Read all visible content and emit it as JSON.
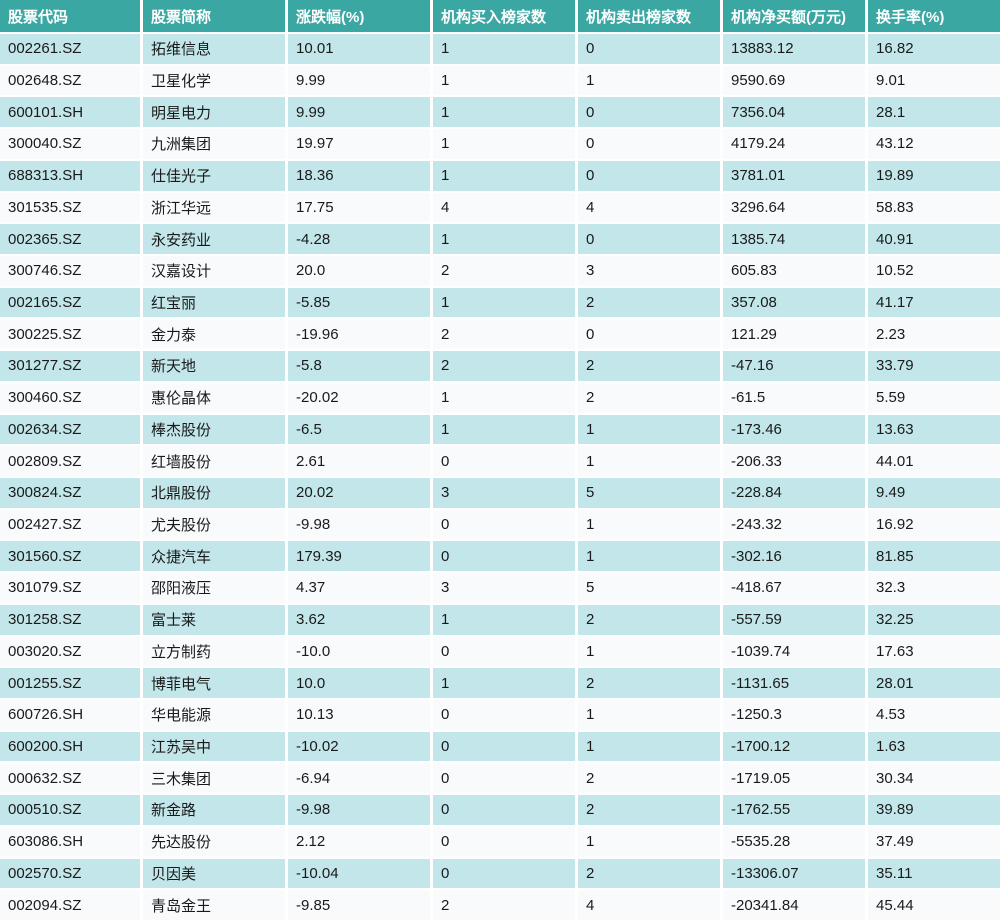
{
  "colors": {
    "header_bg": "#3BA7A3",
    "header_text": "#FFFFFF",
    "row_alt": "#C2E6E9",
    "row_base": "#F8FAFB",
    "cell_text": "#1A1A1A"
  },
  "chart_data": {
    "type": "table",
    "columns": [
      "股票代码",
      "股票简称",
      "涨跌幅(%)",
      "机构买入榜家数",
      "机构卖出榜家数",
      "机构净买额(万元)",
      "换手率(%)"
    ],
    "rows": [
      [
        "002261.SZ",
        "拓维信息",
        "10.01",
        "1",
        "0",
        "13883.12",
        "16.82"
      ],
      [
        "002648.SZ",
        "卫星化学",
        "9.99",
        "1",
        "1",
        "9590.69",
        "9.01"
      ],
      [
        "600101.SH",
        "明星电力",
        "9.99",
        "1",
        "0",
        "7356.04",
        "28.1"
      ],
      [
        "300040.SZ",
        "九洲集团",
        "19.97",
        "1",
        "0",
        "4179.24",
        "43.12"
      ],
      [
        "688313.SH",
        "仕佳光子",
        "18.36",
        "1",
        "0",
        "3781.01",
        "19.89"
      ],
      [
        "301535.SZ",
        "浙江华远",
        "17.75",
        "4",
        "4",
        "3296.64",
        "58.83"
      ],
      [
        "002365.SZ",
        "永安药业",
        "-4.28",
        "1",
        "0",
        "1385.74",
        "40.91"
      ],
      [
        "300746.SZ",
        "汉嘉设计",
        "20.0",
        "2",
        "3",
        "605.83",
        "10.52"
      ],
      [
        "002165.SZ",
        "红宝丽",
        "-5.85",
        "1",
        "2",
        "357.08",
        "41.17"
      ],
      [
        "300225.SZ",
        "金力泰",
        "-19.96",
        "2",
        "0",
        "121.29",
        "2.23"
      ],
      [
        "301277.SZ",
        "新天地",
        "-5.8",
        "2",
        "2",
        "-47.16",
        "33.79"
      ],
      [
        "300460.SZ",
        "惠伦晶体",
        "-20.02",
        "1",
        "2",
        "-61.5",
        "5.59"
      ],
      [
        "002634.SZ",
        "棒杰股份",
        "-6.5",
        "1",
        "1",
        "-173.46",
        "13.63"
      ],
      [
        "002809.SZ",
        "红墙股份",
        "2.61",
        "0",
        "1",
        "-206.33",
        "44.01"
      ],
      [
        "300824.SZ",
        "北鼎股份",
        "20.02",
        "3",
        "5",
        "-228.84",
        "9.49"
      ],
      [
        "002427.SZ",
        "尤夫股份",
        "-9.98",
        "0",
        "1",
        "-243.32",
        "16.92"
      ],
      [
        "301560.SZ",
        "众捷汽车",
        "179.39",
        "0",
        "1",
        "-302.16",
        "81.85"
      ],
      [
        "301079.SZ",
        "邵阳液压",
        "4.37",
        "3",
        "5",
        "-418.67",
        "32.3"
      ],
      [
        "301258.SZ",
        "富士莱",
        "3.62",
        "1",
        "2",
        "-557.59",
        "32.25"
      ],
      [
        "003020.SZ",
        "立方制药",
        "-10.0",
        "0",
        "1",
        "-1039.74",
        "17.63"
      ],
      [
        "001255.SZ",
        "博菲电气",
        "10.0",
        "1",
        "2",
        "-1131.65",
        "28.01"
      ],
      [
        "600726.SH",
        "华电能源",
        "10.13",
        "0",
        "1",
        "-1250.3",
        "4.53"
      ],
      [
        "600200.SH",
        "江苏吴中",
        "-10.02",
        "0",
        "1",
        "-1700.12",
        "1.63"
      ],
      [
        "000632.SZ",
        "三木集团",
        "-6.94",
        "0",
        "2",
        "-1719.05",
        "30.34"
      ],
      [
        "000510.SZ",
        "新金路",
        "-9.98",
        "0",
        "2",
        "-1762.55",
        "39.89"
      ],
      [
        "603086.SH",
        "先达股份",
        "2.12",
        "0",
        "1",
        "-5535.28",
        "37.49"
      ],
      [
        "002570.SZ",
        "贝因美",
        "-10.04",
        "0",
        "2",
        "-13306.07",
        "35.11"
      ],
      [
        "002094.SZ",
        "青岛金王",
        "-9.85",
        "2",
        "4",
        "-20341.84",
        "45.44"
      ]
    ]
  }
}
